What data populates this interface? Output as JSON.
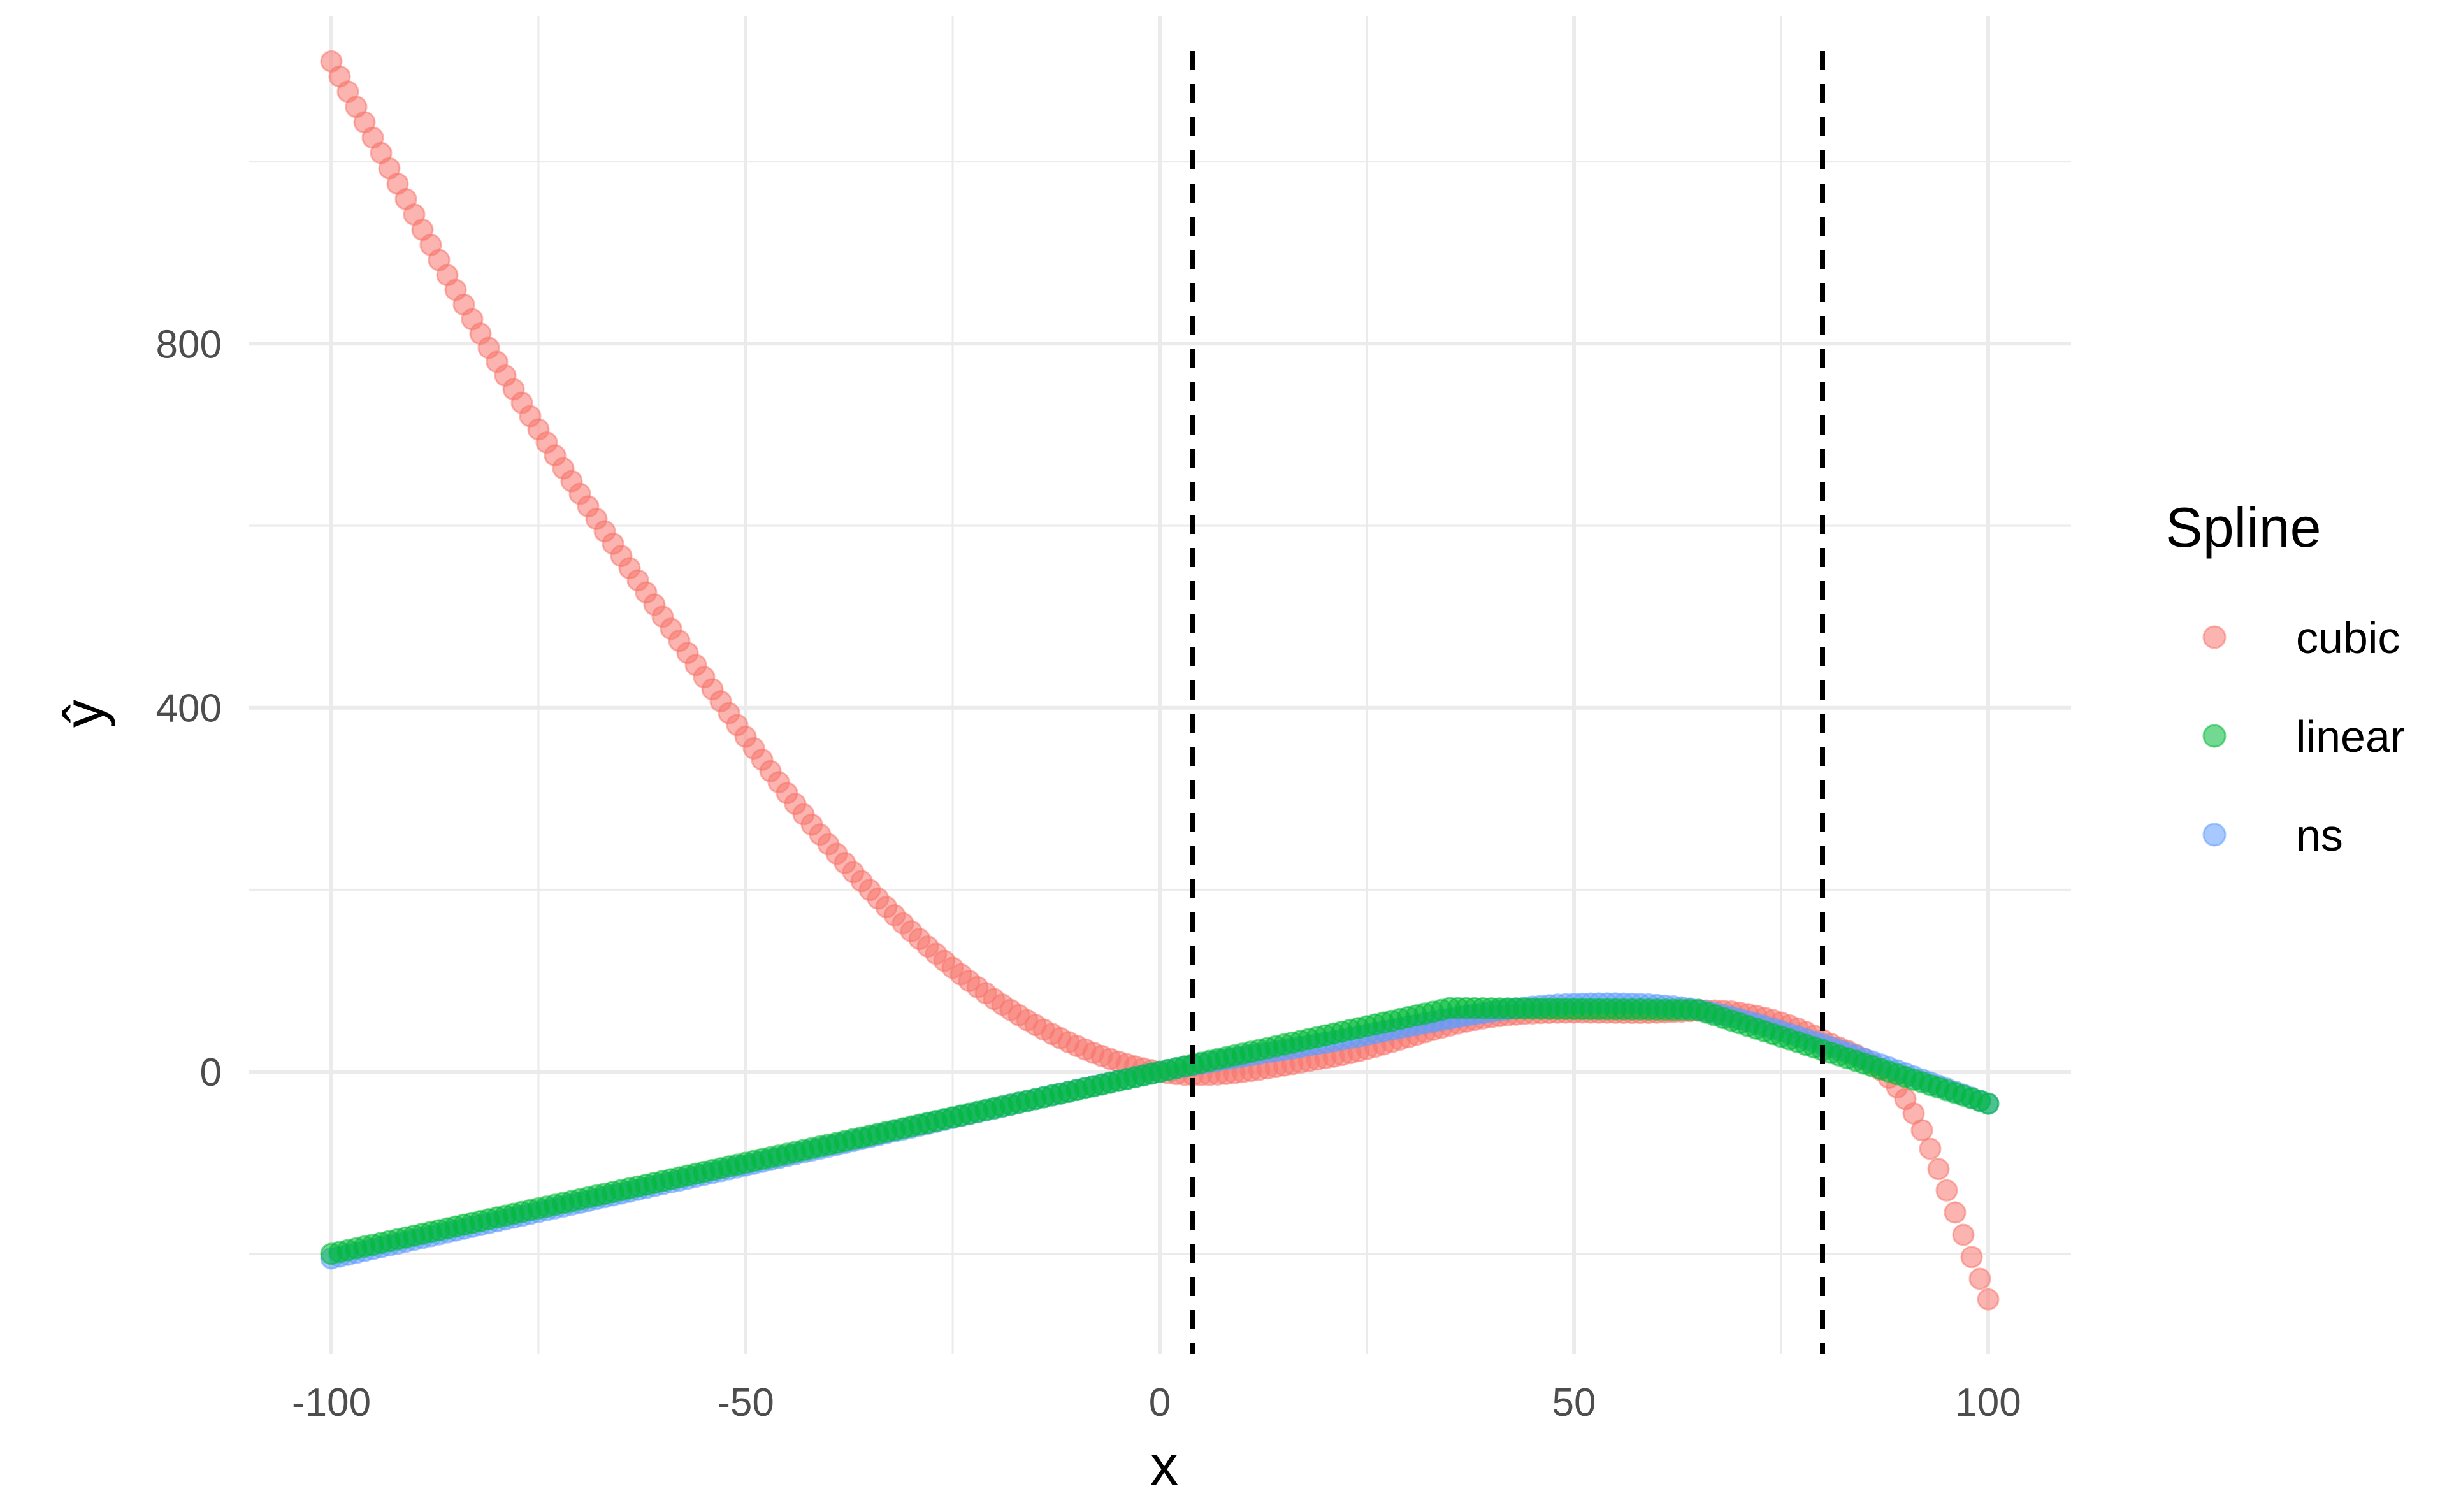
{
  "chart_data": {
    "type": "scatter",
    "title": "",
    "xlabel": "x",
    "ylabel": "ŷ",
    "xlim": [
      -110,
      110
    ],
    "ylim": [
      -310,
      1160
    ],
    "x_ticks": [
      -100,
      -50,
      0,
      50,
      100
    ],
    "x_tick_labels": [
      "-100",
      "-50",
      "0",
      "50",
      "100"
    ],
    "y_ticks": [
      0,
      400,
      800
    ],
    "y_tick_labels": [
      "0",
      "400",
      "800"
    ],
    "grid": true,
    "vlines": [
      {
        "x": 4,
        "style": "dashed",
        "color": "#000000"
      },
      {
        "x": 80,
        "style": "dashed",
        "color": "#000000"
      }
    ],
    "legend": {
      "title": "Spline",
      "placement": "right"
    },
    "x": {
      "from": -100,
      "to": 100,
      "step": 1
    },
    "series": [
      {
        "name": "cubic",
        "color": "#F8766D",
        "alpha": 0.55,
        "model": {
          "kind": "piecewise-cubic",
          "knots": [
            -100,
            -80,
            -60,
            -40,
            -20,
            0,
            20,
            40,
            60,
            70,
            80,
            90,
            100
          ],
          "values": [
            1110,
            780,
            500,
            250,
            80,
            0,
            15,
            60,
            65,
            65,
            35,
            -30,
            -250
          ]
        }
      },
      {
        "name": "linear",
        "color": "#00BA38",
        "alpha": 0.55,
        "model": {
          "kind": "piecewise-linear",
          "knots": [
            -100,
            35,
            65,
            100
          ],
          "values": [
            -200,
            70,
            68,
            -35
          ]
        }
      },
      {
        "name": "ns",
        "color": "#619CFF",
        "alpha": 0.55,
        "model": {
          "kind": "piecewise-cubic",
          "knots": [
            -100,
            -50,
            0,
            20,
            40,
            52,
            65,
            80,
            100
          ],
          "values": [
            -205,
            -103,
            0,
            32,
            66,
            75,
            68,
            30,
            -35
          ]
        }
      }
    ]
  }
}
